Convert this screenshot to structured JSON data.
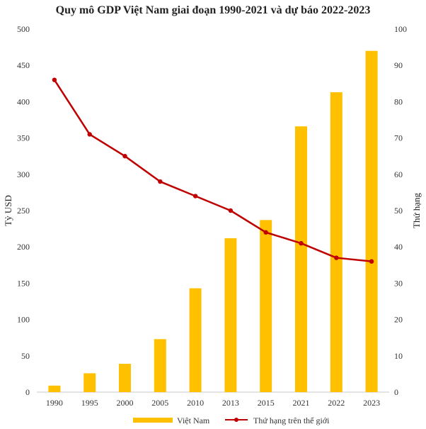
{
  "chart_data": {
    "type": "bar",
    "title": "Quy mô GDP Việt Nam giai đoạn 1990-2021 và dự báo 2022-2023",
    "categories": [
      "1990",
      "1995",
      "2000",
      "2005",
      "2010",
      "2013",
      "2015",
      "2021",
      "2022",
      "2023"
    ],
    "series": [
      {
        "name": "Việt Nam",
        "type": "bar",
        "axis": "left",
        "color": "#FFC000",
        "values": [
          9,
          26,
          39,
          73,
          143,
          212,
          237,
          366,
          413,
          470
        ]
      },
      {
        "name": "Thứ hạng trên thế giới",
        "type": "line",
        "axis": "right",
        "color": "#C00000",
        "values": [
          86,
          71,
          65,
          58,
          54,
          50,
          44,
          41,
          37,
          36
        ]
      }
    ],
    "ylabel": "Tỷ USD",
    "ylabel_right": "Thứ hạng",
    "ylim": [
      0,
      500
    ],
    "ylim_right": [
      0,
      100
    ],
    "yticks": [
      "0",
      "50",
      "100",
      "150",
      "200",
      "250",
      "300",
      "350",
      "400",
      "450",
      "500"
    ],
    "yticks_right": [
      "0",
      "10",
      "20",
      "30",
      "40",
      "50",
      "60",
      "70",
      "80",
      "90",
      "100"
    ],
    "grid": false,
    "legend_position": "bottom"
  }
}
